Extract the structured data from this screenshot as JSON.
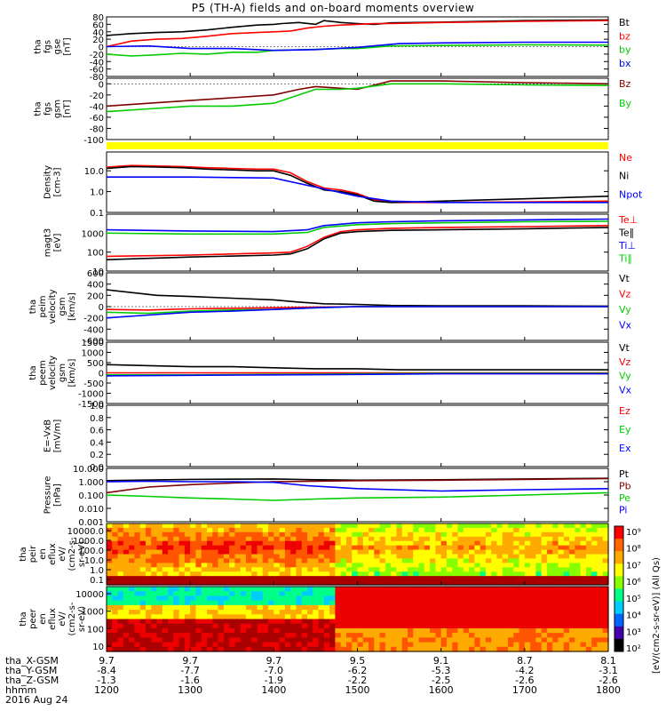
{
  "title": "P5 (TH-A) fields and on-board moments overview",
  "chart_data": [
    {
      "type": "line",
      "ylabel": [
        "tha",
        "fgs",
        "gse",
        "[nT]"
      ],
      "ticks": [
        "80",
        "60",
        "40",
        "20",
        "0",
        "-20",
        "-40",
        "-60",
        "-80"
      ],
      "ylim": [
        -80,
        80
      ],
      "legend": [
        {
          "name": "Bt",
          "color": "#000000"
        },
        {
          "name": "bz",
          "color": "#ff0000"
        },
        {
          "name": "by",
          "color": "#00cc00"
        },
        {
          "name": "bx",
          "color": "#0000ff"
        }
      ],
      "series": [
        {
          "name": "Bt",
          "color": "#000000",
          "x": [
            1200,
            1230,
            1260,
            1290,
            1320,
            1350,
            1380,
            1400,
            1410,
            1430,
            1450,
            1460,
            1480,
            1500,
            1520,
            1540,
            1600,
            1700,
            1800
          ],
          "y": [
            30,
            35,
            38,
            40,
            45,
            52,
            58,
            60,
            62,
            65,
            60,
            70,
            65,
            62,
            60,
            64,
            66,
            70,
            72
          ]
        },
        {
          "name": "bz",
          "color": "#ff0000",
          "x": [
            1200,
            1230,
            1260,
            1290,
            1320,
            1350,
            1380,
            1400,
            1420,
            1440,
            1460,
            1480,
            1500,
            1520,
            1540,
            1600,
            1700,
            1800
          ],
          "y": [
            0,
            15,
            20,
            22,
            28,
            35,
            38,
            40,
            42,
            50,
            55,
            58,
            60,
            62,
            62,
            65,
            68,
            70
          ]
        },
        {
          "name": "by",
          "color": "#00cc00",
          "x": [
            1200,
            1230,
            1260,
            1290,
            1320,
            1350,
            1380,
            1400,
            1440,
            1480,
            1500,
            1540,
            1600,
            1700,
            1800
          ],
          "y": [
            -20,
            -25,
            -22,
            -18,
            -20,
            -15,
            -15,
            -10,
            -8,
            -5,
            -5,
            2,
            3,
            5,
            4
          ]
        },
        {
          "name": "bx",
          "color": "#0000ff",
          "x": [
            1200,
            1250,
            1300,
            1350,
            1400,
            1450,
            1500,
            1550,
            1600,
            1700,
            1800
          ],
          "y": [
            0,
            2,
            -5,
            -5,
            -10,
            -8,
            -2,
            8,
            10,
            12,
            12
          ]
        }
      ]
    },
    {
      "type": "line",
      "ylabel": [
        "tha",
        "fgs",
        "gsm",
        "[nT]"
      ],
      "ticks": [
        "0",
        "-20",
        "-40",
        "-60",
        "-80",
        "-100"
      ],
      "ylim": [
        -100,
        10
      ],
      "legend": [
        {
          "name": "Bz",
          "color": "#800000"
        },
        {
          "name": "By",
          "color": "#00cc00"
        }
      ],
      "series": [
        {
          "name": "Bz",
          "color": "#800000",
          "x": [
            1200,
            1250,
            1300,
            1350,
            1400,
            1430,
            1450,
            1480,
            1500,
            1540,
            1600,
            1700,
            1800
          ],
          "y": [
            -40,
            -35,
            -30,
            -25,
            -20,
            -10,
            -5,
            -8,
            -10,
            5,
            5,
            2,
            0
          ]
        },
        {
          "name": "By",
          "color": "#00cc00",
          "x": [
            1200,
            1250,
            1300,
            1350,
            1400,
            1430,
            1450,
            1480,
            1500,
            1540,
            1600,
            1700,
            1800
          ],
          "y": [
            -50,
            -45,
            -40,
            -40,
            -35,
            -20,
            -10,
            -10,
            -8,
            0,
            0,
            -2,
            -3
          ]
        }
      ]
    },
    {
      "type": "line",
      "ylabel": [
        "Density",
        "[cm-3]"
      ],
      "ticks": [
        "10.0",
        "1.0",
        "0.1"
      ],
      "ylim": [
        0.1,
        80
      ],
      "log": true,
      "legend": [
        {
          "name": "Ne",
          "color": "#ff0000"
        },
        {
          "name": "Ni",
          "color": "#000000"
        },
        {
          "name": "Npot",
          "color": "#0000ff"
        }
      ],
      "series": [
        {
          "name": "Ne",
          "color": "#ff0000",
          "x": [
            1200,
            1230,
            1260,
            1290,
            1320,
            1350,
            1380,
            1400,
            1420,
            1440,
            1460,
            1480,
            1500,
            1520,
            1540,
            1600,
            1700,
            1800
          ],
          "y": [
            15,
            18,
            17,
            16,
            14,
            13,
            12,
            12,
            8,
            3,
            1.5,
            1.2,
            0.8,
            0.4,
            0.3,
            0.3,
            0.32,
            0.35
          ]
        },
        {
          "name": "Ni",
          "color": "#000000",
          "x": [
            1200,
            1230,
            1260,
            1290,
            1320,
            1350,
            1380,
            1400,
            1420,
            1440,
            1460,
            1480,
            1500,
            1520,
            1540,
            1600,
            1700,
            1800
          ],
          "y": [
            13,
            16,
            15,
            14,
            12,
            11,
            10,
            10,
            6,
            2.5,
            1.2,
            1,
            0.7,
            0.35,
            0.3,
            0.35,
            0.45,
            0.6
          ]
        },
        {
          "name": "Npot",
          "color": "#0000ff",
          "x": [
            1200,
            1300,
            1400,
            1440,
            1500,
            1540,
            1600,
            1700,
            1800
          ],
          "y": [
            5,
            5,
            4.5,
            2,
            0.6,
            0.35,
            0.3,
            0.3,
            0.3
          ]
        }
      ]
    },
    {
      "type": "line",
      "ylabel": [
        "magt3",
        "[eV]"
      ],
      "ticks": [
        "1000",
        "100",
        "10"
      ],
      "ylim": [
        10,
        10000
      ],
      "log": true,
      "legend": [
        {
          "name": "Te⊥",
          "color": "#ff0000"
        },
        {
          "name": "Te∥",
          "color": "#000000"
        },
        {
          "name": "Ti⊥",
          "color": "#0000ff"
        },
        {
          "name": "Ti∥",
          "color": "#00cc00"
        }
      ],
      "series": [
        {
          "name": "Ti⊥",
          "color": "#0000ff",
          "x": [
            1200,
            1300,
            1400,
            1440,
            1460,
            1500,
            1540,
            1600,
            1700,
            1800
          ],
          "y": [
            1500,
            1300,
            1200,
            1500,
            2500,
            3500,
            4000,
            4500,
            5000,
            5500
          ]
        },
        {
          "name": "Ti∥",
          "color": "#00cc00",
          "x": [
            1200,
            1300,
            1400,
            1440,
            1460,
            1500,
            1540,
            1600,
            1700,
            1800
          ],
          "y": [
            1000,
            900,
            900,
            1100,
            2000,
            2800,
            3200,
            3500,
            4000,
            4200
          ]
        },
        {
          "name": "Te⊥",
          "color": "#ff0000",
          "x": [
            1200,
            1300,
            1400,
            1420,
            1440,
            1460,
            1480,
            1500,
            1540,
            1600,
            1700,
            1800
          ],
          "y": [
            60,
            70,
            90,
            100,
            200,
            600,
            1200,
            1500,
            1800,
            2000,
            2200,
            2500
          ]
        },
        {
          "name": "Te∥",
          "color": "#000000",
          "x": [
            1200,
            1300,
            1400,
            1420,
            1440,
            1460,
            1480,
            1500,
            1540,
            1600,
            1700,
            1800
          ],
          "y": [
            40,
            55,
            70,
            80,
            150,
            500,
            1000,
            1200,
            1400,
            1500,
            1700,
            2000
          ]
        }
      ]
    },
    {
      "type": "line",
      "ylabel": [
        "tha",
        "peim",
        "velocity",
        "gsm",
        "[km/s]"
      ],
      "ticks": [
        "600",
        "400",
        "200",
        "0",
        "-200",
        "-400",
        "-600"
      ],
      "ylim": [
        -600,
        600
      ],
      "legend": [
        {
          "name": "Vt",
          "color": "#000000"
        },
        {
          "name": "Vz",
          "color": "#ff0000"
        },
        {
          "name": "Vy",
          "color": "#00cc00"
        },
        {
          "name": "Vx",
          "color": "#0000ff"
        }
      ],
      "series": [
        {
          "name": "Vt",
          "color": "#000000",
          "x": [
            1200,
            1230,
            1260,
            1300,
            1350,
            1400,
            1430,
            1460,
            1500,
            1540,
            1600,
            1700,
            1800
          ],
          "y": [
            300,
            250,
            200,
            180,
            150,
            120,
            80,
            50,
            40,
            20,
            15,
            15,
            10
          ]
        },
        {
          "name": "Vz",
          "color": "#ff0000",
          "x": [
            1200,
            1250,
            1300,
            1350,
            1400,
            1450,
            1500,
            1600,
            1700,
            1800
          ],
          "y": [
            -50,
            -60,
            -40,
            -30,
            -20,
            -10,
            0,
            0,
            0,
            0
          ]
        },
        {
          "name": "Vy",
          "color": "#00cc00",
          "x": [
            1200,
            1250,
            1300,
            1350,
            1400,
            1450,
            1500,
            1600,
            1700,
            1800
          ],
          "y": [
            -100,
            -120,
            -80,
            -60,
            -50,
            -20,
            0,
            0,
            0,
            0
          ]
        },
        {
          "name": "Vx",
          "color": "#0000ff",
          "x": [
            1200,
            1250,
            1300,
            1350,
            1400,
            1450,
            1500,
            1600,
            1700,
            1800
          ],
          "y": [
            -200,
            -150,
            -100,
            -80,
            -50,
            -20,
            0,
            0,
            0,
            0
          ]
        }
      ]
    },
    {
      "type": "line",
      "ylabel": [
        "tha",
        "peem",
        "velocity",
        "gsm",
        "[km/s]"
      ],
      "ticks": [
        "1500",
        "1000",
        "500",
        "0",
        "-500",
        "-1000",
        "-1500"
      ],
      "ylim": [
        -1500,
        1500
      ],
      "legend": [
        {
          "name": "Vt",
          "color": "#000000"
        },
        {
          "name": "Vz",
          "color": "#ff0000"
        },
        {
          "name": "Vy",
          "color": "#00cc00"
        },
        {
          "name": "Vx",
          "color": "#0000ff"
        }
      ],
      "series": [
        {
          "name": "Vt",
          "color": "#000000",
          "x": [
            1200,
            1250,
            1300,
            1350,
            1400,
            1450,
            1500,
            1550,
            1600,
            1700,
            1800
          ],
          "y": [
            400,
            350,
            300,
            300,
            250,
            200,
            200,
            150,
            150,
            150,
            150
          ]
        },
        {
          "name": "Vz",
          "color": "#ff0000",
          "x": [
            1200,
            1300,
            1400,
            1500,
            1600,
            1700,
            1800
          ],
          "y": [
            0,
            0,
            0,
            0,
            0,
            0,
            0
          ]
        },
        {
          "name": "Vy",
          "color": "#00cc00",
          "x": [
            1200,
            1300,
            1400,
            1500,
            1600,
            1700,
            1800
          ],
          "y": [
            -100,
            -100,
            -80,
            -50,
            -20,
            -20,
            -20
          ]
        },
        {
          "name": "Vx",
          "color": "#0000ff",
          "x": [
            1200,
            1300,
            1400,
            1500,
            1600,
            1700,
            1800
          ],
          "y": [
            -150,
            -120,
            -100,
            -80,
            -50,
            -50,
            -50
          ]
        }
      ]
    },
    {
      "type": "line",
      "ylabel": [
        "E=-VxB",
        "[mV/m]"
      ],
      "ticks": [
        "1.0",
        "0.8",
        "0.6",
        "0.4",
        "0.2",
        "0.0"
      ],
      "ylim": [
        0,
        1
      ],
      "legend": [
        {
          "name": "Ez",
          "color": "#ff0000"
        },
        {
          "name": "Ey",
          "color": "#00cc00"
        },
        {
          "name": "Ex",
          "color": "#0000ff"
        }
      ],
      "series": []
    },
    {
      "type": "line",
      "ylabel": [
        "Pressure",
        "[nPa]"
      ],
      "ticks": [
        "10.000",
        "1.000",
        "0.100",
        "0.010",
        "0.001"
      ],
      "ylim": [
        0.001,
        10
      ],
      "log": true,
      "legend": [
        {
          "name": "Pt",
          "color": "#000000"
        },
        {
          "name": "Pb",
          "color": "#800000"
        },
        {
          "name": "Pe",
          "color": "#00cc00"
        },
        {
          "name": "Pi",
          "color": "#0000ff"
        }
      ],
      "series": [
        {
          "name": "Pt",
          "color": "#000000",
          "x": [
            1200,
            1300,
            1400,
            1450,
            1500,
            1600,
            1700,
            1800
          ],
          "y": [
            1.2,
            1.5,
            1.6,
            1.4,
            1.3,
            1.4,
            1.6,
            1.8
          ]
        },
        {
          "name": "Pb",
          "color": "#800000",
          "x": [
            1200,
            1250,
            1300,
            1350,
            1400,
            1450,
            1500,
            1600,
            1700,
            1800
          ],
          "y": [
            0.15,
            0.4,
            0.6,
            0.8,
            1.0,
            1.1,
            1.2,
            1.3,
            1.5,
            1.7
          ]
        },
        {
          "name": "Pe",
          "color": "#00cc00",
          "x": [
            1200,
            1250,
            1300,
            1350,
            1400,
            1450,
            1500,
            1600,
            1700,
            1800
          ],
          "y": [
            0.1,
            0.08,
            0.06,
            0.05,
            0.04,
            0.05,
            0.06,
            0.07,
            0.1,
            0.15
          ]
        },
        {
          "name": "Pi",
          "color": "#0000ff",
          "x": [
            1200,
            1250,
            1300,
            1350,
            1400,
            1440,
            1500,
            1600,
            1700,
            1800
          ],
          "y": [
            1.0,
            1.1,
            1.0,
            1.0,
            0.9,
            0.5,
            0.3,
            0.2,
            0.25,
            0.3
          ]
        }
      ]
    },
    {
      "type": "heatmap",
      "ylabel": [
        "tha",
        "peir",
        "en",
        "eflux",
        "eV/",
        "(cm2-s-",
        "sr-eV)"
      ],
      "ticks": [
        "10000.0",
        "1000.0",
        "100.0",
        "10.0",
        "1.0",
        "0.1"
      ]
    },
    {
      "type": "heatmap",
      "ylabel": [
        "tha",
        "peer",
        "en",
        "eflux",
        "eV/",
        "(cm2-s-",
        "sr-eV)"
      ],
      "ticks": [
        "10000",
        "1000",
        "100",
        "10"
      ]
    }
  ],
  "colorbar": {
    "label": "[eV/(cm2-s-sr-eV)]  (All Qs)",
    "ticks": [
      "10⁹",
      "10⁸",
      "10⁷",
      "10⁶",
      "10⁵",
      "10⁴",
      "10³",
      "10²"
    ]
  },
  "xaxis": {
    "rows": [
      {
        "label": "tha_X-GSM",
        "values": [
          "9.7",
          "9.7",
          "9.7",
          "9.5",
          "9.1",
          "8.7",
          "8.1"
        ]
      },
      {
        "label": "tha_Y-GSM",
        "values": [
          "-8.4",
          "-7.7",
          "-7.0",
          "-6.2",
          "-5.3",
          "-4.2",
          "-3.1"
        ]
      },
      {
        "label": "tha_Z-GSM",
        "values": [
          "-1.3",
          "-1.6",
          "-1.9",
          "-2.2",
          "-2.5",
          "-2.6",
          "-2.6"
        ]
      },
      {
        "label": "hhmm",
        "values": [
          "1200",
          "1300",
          "1400",
          "1500",
          "1600",
          "1700",
          "1800"
        ]
      }
    ],
    "date": "2016 Aug 24",
    "range": [
      1200,
      1800
    ]
  }
}
